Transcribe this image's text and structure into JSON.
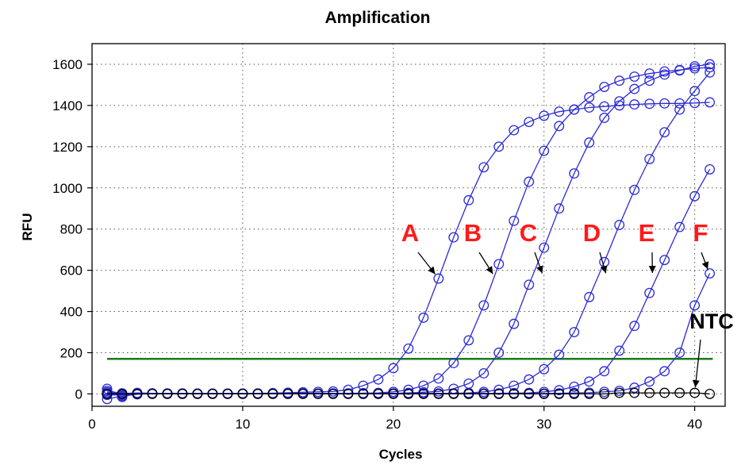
{
  "chart_data": {
    "type": "line",
    "title": "Amplification",
    "xlabel": "Cycles",
    "ylabel": "RFU",
    "xlim": [
      1,
      41.5
    ],
    "ylim": [
      -60,
      1700
    ],
    "xticks": [
      0,
      10,
      20,
      30,
      40
    ],
    "yticks": [
      0,
      200,
      400,
      600,
      800,
      1000,
      1200,
      1400,
      1600
    ],
    "grid": true,
    "threshold": 170,
    "threshold_color": "#1a7a1a",
    "series_color": "#2b2bd8",
    "ntc_color": "#000000",
    "series": [
      {
        "name": "A",
        "x": [
          1,
          2,
          3,
          4,
          5,
          6,
          7,
          8,
          9,
          10,
          11,
          12,
          13,
          14,
          15,
          16,
          17,
          18,
          19,
          20,
          21,
          22,
          23,
          24,
          25,
          26,
          27,
          28,
          29,
          30,
          31,
          32,
          33,
          34,
          35,
          36,
          37,
          38,
          39,
          40,
          41
        ],
        "values": [
          2,
          1,
          2,
          1,
          2,
          1,
          2,
          1,
          2,
          2,
          3,
          4,
          6,
          8,
          10,
          12,
          20,
          40,
          70,
          125,
          220,
          370,
          560,
          760,
          940,
          1100,
          1200,
          1280,
          1320,
          1350,
          1370,
          1380,
          1390,
          1395,
          1400,
          1405,
          1408,
          1410,
          1410,
          1412,
          1415
        ]
      },
      {
        "name": "B",
        "x": [
          1,
          2,
          3,
          4,
          5,
          6,
          7,
          8,
          9,
          10,
          11,
          12,
          13,
          14,
          15,
          16,
          17,
          18,
          19,
          20,
          21,
          22,
          23,
          24,
          25,
          26,
          27,
          28,
          29,
          30,
          31,
          32,
          33,
          34,
          35,
          36,
          37,
          38,
          39,
          40,
          41
        ],
        "values": [
          8,
          3,
          2,
          2,
          2,
          2,
          1,
          2,
          1,
          2,
          1,
          2,
          2,
          2,
          2,
          3,
          3,
          4,
          5,
          10,
          20,
          40,
          75,
          150,
          260,
          430,
          630,
          840,
          1030,
          1180,
          1300,
          1380,
          1440,
          1490,
          1520,
          1540,
          1555,
          1565,
          1572,
          1580,
          1585
        ]
      },
      {
        "name": "C",
        "x": [
          1,
          2,
          3,
          4,
          5,
          6,
          7,
          8,
          9,
          10,
          11,
          12,
          13,
          14,
          15,
          16,
          17,
          18,
          19,
          20,
          21,
          22,
          23,
          24,
          25,
          26,
          27,
          28,
          29,
          30,
          31,
          32,
          33,
          34,
          35,
          36,
          37,
          38,
          39,
          40,
          41
        ],
        "values": [
          15,
          2,
          5,
          3,
          2,
          2,
          2,
          1,
          2,
          2,
          2,
          2,
          2,
          2,
          2,
          2,
          2,
          2,
          2,
          3,
          5,
          8,
          12,
          25,
          50,
          100,
          200,
          340,
          530,
          710,
          900,
          1070,
          1220,
          1340,
          1420,
          1480,
          1520,
          1550,
          1570,
          1590,
          1600
        ]
      },
      {
        "name": "D",
        "x": [
          1,
          2,
          3,
          4,
          5,
          6,
          7,
          8,
          9,
          10,
          11,
          12,
          13,
          14,
          15,
          16,
          17,
          18,
          19,
          20,
          21,
          22,
          23,
          24,
          25,
          26,
          27,
          28,
          29,
          30,
          31,
          32,
          33,
          34,
          35,
          36,
          37,
          38,
          39,
          40,
          41
        ],
        "values": [
          -5,
          -5,
          0,
          1,
          1,
          1,
          1,
          1,
          1,
          1,
          1,
          1,
          1,
          1,
          1,
          1,
          1,
          1,
          1,
          1,
          1,
          1,
          2,
          3,
          5,
          10,
          20,
          40,
          70,
          120,
          190,
          300,
          470,
          640,
          820,
          990,
          1140,
          1270,
          1380,
          1470,
          1560
        ]
      },
      {
        "name": "E",
        "x": [
          1,
          2,
          3,
          4,
          5,
          6,
          7,
          8,
          9,
          10,
          11,
          12,
          13,
          14,
          15,
          16,
          17,
          18,
          19,
          20,
          21,
          22,
          23,
          24,
          25,
          26,
          27,
          28,
          29,
          30,
          31,
          32,
          33,
          34,
          35,
          36,
          37,
          38,
          39,
          40,
          41
        ],
        "values": [
          25,
          -15,
          3,
          3,
          3,
          3,
          2,
          2,
          2,
          2,
          2,
          2,
          2,
          2,
          2,
          2,
          2,
          2,
          2,
          2,
          2,
          2,
          2,
          2,
          2,
          2,
          3,
          4,
          5,
          10,
          18,
          35,
          60,
          110,
          210,
          330,
          490,
          650,
          810,
          960,
          1090
        ]
      },
      {
        "name": "F",
        "x": [
          1,
          2,
          3,
          4,
          5,
          6,
          7,
          8,
          9,
          10,
          11,
          12,
          13,
          14,
          15,
          16,
          17,
          18,
          19,
          20,
          21,
          22,
          23,
          24,
          25,
          26,
          27,
          28,
          29,
          30,
          31,
          32,
          33,
          34,
          35,
          36,
          37,
          38,
          39,
          40,
          41
        ],
        "values": [
          -25,
          -10,
          -2,
          2,
          2,
          2,
          2,
          2,
          2,
          2,
          2,
          2,
          2,
          2,
          2,
          2,
          2,
          2,
          2,
          2,
          2,
          2,
          2,
          2,
          2,
          2,
          2,
          2,
          2,
          2,
          3,
          5,
          6,
          10,
          15,
          30,
          60,
          110,
          200,
          430,
          585
        ]
      },
      {
        "name": "NTC",
        "x": [
          1,
          2,
          3,
          4,
          5,
          6,
          7,
          8,
          9,
          10,
          11,
          12,
          13,
          14,
          15,
          16,
          17,
          18,
          19,
          20,
          21,
          22,
          23,
          24,
          25,
          26,
          27,
          28,
          29,
          30,
          31,
          32,
          33,
          34,
          35,
          36,
          37,
          38,
          39,
          40,
          41
        ],
        "values": [
          0,
          0,
          0,
          0,
          0,
          0,
          0,
          0,
          0,
          0,
          0,
          0,
          0,
          0,
          0,
          0,
          0,
          0,
          0,
          0,
          0,
          0,
          0,
          0,
          0,
          0,
          0,
          0,
          0,
          0,
          0,
          0,
          0,
          0,
          5,
          5,
          5,
          5,
          5,
          5,
          0
        ]
      }
    ],
    "annotations": [
      {
        "label": "A",
        "color": "#ff1a1a",
        "point_x": 23,
        "point_y": 560
      },
      {
        "label": "B",
        "color": "#ff1a1a",
        "point_x": 26.8,
        "point_y": 560
      },
      {
        "label": "C",
        "color": "#ff1a1a",
        "point_x": 30,
        "point_y": 560
      },
      {
        "label": "D",
        "color": "#ff1a1a",
        "point_x": 34.2,
        "point_y": 560
      },
      {
        "label": "E",
        "color": "#ff1a1a",
        "point_x": 37.2,
        "point_y": 560
      },
      {
        "label": "F",
        "color": "#ff1a1a",
        "point_x": 41,
        "point_y": 580
      },
      {
        "label": "NTC",
        "color": "#000000",
        "point_x": 40,
        "point_y": 5
      }
    ]
  }
}
